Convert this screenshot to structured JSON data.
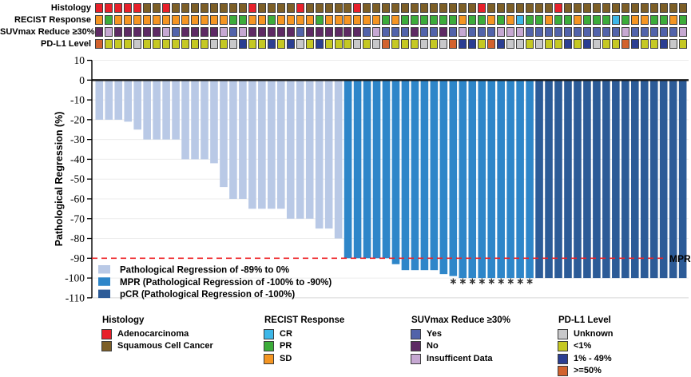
{
  "tracks": {
    "rows": [
      {
        "id": "histology",
        "label": "Histology",
        "palette": {
          "A": "#e8202a",
          "S": "#7d5f27"
        },
        "meanings": {
          "A": "Adenocarcinoma",
          "S": "Squamous Cell Cancer"
        },
        "values": [
          "A",
          "A",
          "A",
          "A",
          "A",
          "S",
          "S",
          "A",
          "S",
          "S",
          "S",
          "S",
          "S",
          "S",
          "S",
          "S",
          "A",
          "S",
          "S",
          "S",
          "S",
          "A",
          "S",
          "S",
          "S",
          "S",
          "S",
          "A",
          "S",
          "S",
          "S",
          "S",
          "S",
          "S",
          "S",
          "S",
          "S",
          "S",
          "S",
          "S",
          "A",
          "S",
          "S",
          "S",
          "S",
          "S",
          "S",
          "S",
          "A",
          "S",
          "S",
          "S",
          "S",
          "S",
          "S",
          "S",
          "S",
          "S",
          "S",
          "S",
          "S",
          "S"
        ]
      },
      {
        "id": "recist",
        "label": "RECIST Response",
        "palette": {
          "C": "#3db7e8",
          "P": "#3cac3a",
          "S": "#f49522"
        },
        "meanings": {
          "C": "CR",
          "P": "PR",
          "S": "SD"
        },
        "values": [
          "S",
          "P",
          "S",
          "S",
          "S",
          "S",
          "S",
          "S",
          "S",
          "S",
          "S",
          "S",
          "S",
          "S",
          "P",
          "P",
          "S",
          "S",
          "P",
          "S",
          "S",
          "S",
          "S",
          "P",
          "S",
          "S",
          "S",
          "S",
          "S",
          "S",
          "P",
          "S",
          "P",
          "P",
          "P",
          "P",
          "P",
          "P",
          "S",
          "P",
          "P",
          "S",
          "P",
          "S",
          "C",
          "P",
          "P",
          "S",
          "P",
          "P",
          "S",
          "P",
          "P",
          "P",
          "C",
          "P",
          "S",
          "S",
          "P",
          "P",
          "S",
          "P"
        ]
      },
      {
        "id": "suvmax",
        "label": "SUVmax Reduce ≥30%",
        "palette": {
          "Y": "#5263aa",
          "N": "#5e2a64",
          "I": "#c6a8d2"
        },
        "meanings": {
          "Y": "Yes",
          "N": "No",
          "I": "Insufficent Data"
        },
        "values": [
          "N",
          "I",
          "N",
          "N",
          "N",
          "N",
          "N",
          "I",
          "Y",
          "N",
          "N",
          "N",
          "N",
          "I",
          "Y",
          "I",
          "N",
          "N",
          "N",
          "N",
          "N",
          "Y",
          "N",
          "N",
          "N",
          "N",
          "N",
          "N",
          "Y",
          "I",
          "Y",
          "Y",
          "Y",
          "N",
          "Y",
          "Y",
          "N",
          "Y",
          "I",
          "Y",
          "Y",
          "Y",
          "I",
          "I",
          "I",
          "Y",
          "Y",
          "Y",
          "Y",
          "Y",
          "Y",
          "Y",
          "Y",
          "Y",
          "Y",
          "I",
          "Y",
          "Y",
          "Y",
          "Y",
          "Y",
          "I"
        ]
      },
      {
        "id": "pdl1",
        "label": "PD-L1 Level",
        "palette": {
          "U": "#c8c8ca",
          "L": "#c5c823",
          "M": "#2b3e92",
          "H": "#d2622d"
        },
        "meanings": {
          "U": "Unknown",
          "L": "<1%",
          "M": "1% - 49%",
          "H": ">=50%"
        },
        "values": [
          "H",
          "L",
          "L",
          "L",
          "U",
          "L",
          "L",
          "L",
          "L",
          "L",
          "L",
          "L",
          "U",
          "L",
          "U",
          "M",
          "L",
          "L",
          "M",
          "L",
          "M",
          "U",
          "L",
          "M",
          "L",
          "L",
          "L",
          "U",
          "L",
          "U",
          "H",
          "L",
          "L",
          "L",
          "U",
          "L",
          "U",
          "H",
          "M",
          "M",
          "L",
          "H",
          "M",
          "U",
          "U",
          "L",
          "U",
          "L",
          "L",
          "M",
          "L",
          "M",
          "U",
          "L",
          "L",
          "H",
          "M",
          "L",
          "L",
          "M",
          "U",
          "L"
        ]
      }
    ]
  },
  "chart_data": {
    "type": "bar",
    "subtype": "waterfall",
    "title": "",
    "xlabel": "",
    "ylabel": "Pathological Regression (%)",
    "ylim": [
      -110,
      10
    ],
    "ytick_step": 10,
    "yticks": [
      10,
      0,
      -10,
      -20,
      -30,
      -40,
      -50,
      -60,
      -70,
      -80,
      -90,
      -100,
      -110
    ],
    "grid": true,
    "n_bars": 62,
    "values": [
      -20,
      -20,
      -20,
      -21,
      -25,
      -30,
      -30,
      -30,
      -30,
      -40,
      -40,
      -40,
      -42,
      -54,
      -60,
      -60,
      -65,
      -65,
      -65,
      -65,
      -70,
      -70,
      -70,
      -75,
      -75,
      -80,
      -90,
      -90,
      -90,
      -90,
      -90,
      -93,
      -96,
      -96,
      -96,
      -96,
      -98,
      -99,
      -100,
      -100,
      -100,
      -100,
      -100,
      -100,
      -100,
      -100,
      -100,
      -100,
      -100,
      -100,
      -100,
      -100,
      -100,
      -100,
      -100,
      -100,
      -100,
      -100,
      -100,
      -100,
      -100,
      -100
    ],
    "group_ranges": [
      {
        "group": "reg",
        "from": 1,
        "to": 26
      },
      {
        "group": "mpr",
        "from": 27,
        "to": 46
      },
      {
        "group": "pcr",
        "from": 47,
        "to": 62
      }
    ],
    "group_colors": {
      "reg": "#b9c9e6",
      "mpr": "#2e86c9",
      "pcr": "#2c5b97"
    },
    "legend": [
      {
        "group": "reg",
        "label": "Pathological Regression of -89% to 0%"
      },
      {
        "group": "mpr",
        "label": "MPR (Pathological Regression of -100% to -90%)"
      },
      {
        "group": "pcr",
        "label": "pCR (Pathological Regression of -100%)"
      }
    ],
    "reference_line": {
      "value": -90,
      "label": "MPR",
      "color": "#ee2024",
      "style": "dashed"
    },
    "asterisk_bars": [
      38,
      39,
      40,
      41,
      42,
      43,
      44,
      45,
      46
    ],
    "asterisk_symbol": "∗"
  },
  "legends": [
    {
      "title": "Histology",
      "items": [
        {
          "label": "Adenocarcinoma",
          "color": "#e8202a"
        },
        {
          "label": "Squamous Cell Cancer",
          "color": "#7d5f27"
        }
      ]
    },
    {
      "title": "RECIST Response",
      "items": [
        {
          "label": "CR",
          "color": "#3db7e8"
        },
        {
          "label": "PR",
          "color": "#3cac3a"
        },
        {
          "label": "SD",
          "color": "#f49522"
        }
      ]
    },
    {
      "title": "SUVmax Reduce ≥30%",
      "items": [
        {
          "label": "Yes",
          "color": "#5263aa"
        },
        {
          "label": "No",
          "color": "#5e2a64"
        },
        {
          "label": "Insufficent Data",
          "color": "#c6a8d2"
        }
      ]
    },
    {
      "title": "PD-L1 Level",
      "items": [
        {
          "label": "Unknown",
          "color": "#c8c8ca"
        },
        {
          "label": "<1%",
          "color": "#c5c823"
        },
        {
          "label": "1% - 49%",
          "color": "#2b3e92"
        },
        {
          "label": ">=50%",
          "color": "#d2622d"
        }
      ]
    }
  ]
}
